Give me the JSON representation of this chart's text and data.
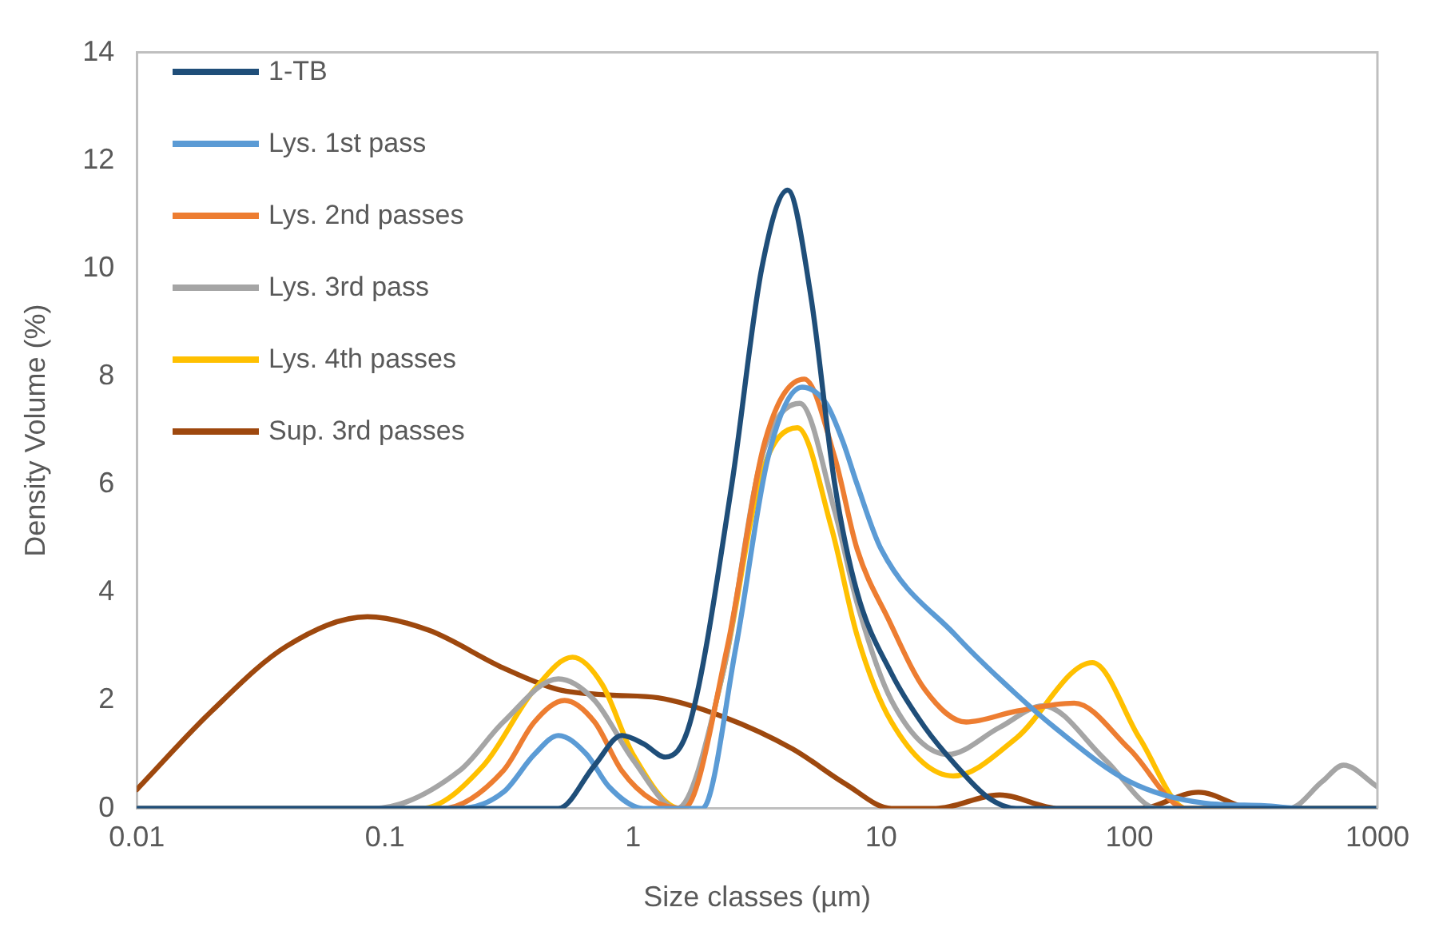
{
  "chart_data": {
    "type": "line",
    "xlabel": "Size classes (µm)",
    "ylabel": "Density Volume (%)",
    "log": "x",
    "xlim": [
      0.01,
      1000
    ],
    "xticks": [
      0.01,
      0.1,
      1,
      10,
      100,
      1000
    ],
    "ylim": [
      0,
      14
    ],
    "yticks": [
      0,
      2,
      4,
      6,
      8,
      10,
      12,
      14
    ],
    "grid": false,
    "legend": "top left",
    "marker": "none",
    "line_style": "solid",
    "series": [
      {
        "name": "1-TB",
        "color": "#1f4e79",
        "x": [
          0.01,
          0.5,
          0.7,
          0.9,
          1.1,
          1.35,
          1.7,
          2.5,
          3.3,
          4.2,
          5.2,
          6.5,
          8,
          11,
          15,
          20,
          27,
          35,
          1000
        ],
        "values": [
          0,
          0,
          0.8,
          1.35,
          1.2,
          0.95,
          1.6,
          6,
          10,
          11.45,
          9.5,
          6,
          4,
          2.5,
          1.5,
          0.8,
          0.2,
          0,
          0
        ]
      },
      {
        "name": "Lys. 1st pass",
        "color": "#5b9bd5",
        "x": [
          0.01,
          0.2,
          0.3,
          0.4,
          0.5,
          0.65,
          0.8,
          1.1,
          1.9,
          2.6,
          3.5,
          4.8,
          6,
          7,
          8,
          10,
          20,
          30,
          50,
          100,
          200,
          350,
          500,
          1000
        ],
        "values": [
          0,
          0,
          0.3,
          1,
          1.35,
          1,
          0.4,
          0,
          0,
          3,
          6.5,
          7.8,
          7.5,
          6.8,
          6,
          4.8,
          3.2,
          2.4,
          1.5,
          0.5,
          0.1,
          0.05,
          0,
          0
        ]
      },
      {
        "name": "Lys. 2nd passes",
        "color": "#ed7d31",
        "x": [
          0.01,
          0.17,
          0.3,
          0.4,
          0.53,
          0.7,
          0.9,
          1.2,
          1.6,
          2.4,
          3.4,
          4.9,
          6.5,
          8,
          10.7,
          15,
          22,
          35,
          60,
          100,
          170,
          1000
        ],
        "values": [
          0,
          0,
          0.7,
          1.6,
          2,
          1.6,
          0.7,
          0.15,
          0,
          3,
          6.8,
          7.95,
          6.5,
          4.8,
          3.5,
          2.2,
          1.6,
          1.8,
          1.95,
          1.1,
          0,
          0
        ]
      },
      {
        "name": "Lys. 3rd pass",
        "color": "#a5a5a5",
        "x": [
          0.01,
          0.09,
          0.2,
          0.3,
          0.5,
          0.7,
          1,
          1.5,
          2.3,
          3.3,
          4.7,
          6.5,
          8,
          11,
          18.6,
          30,
          45,
          80,
          130,
          440,
          600,
          730,
          1000
        ],
        "values": [
          0,
          0,
          0.7,
          1.6,
          2.4,
          2,
          0.9,
          0,
          2.5,
          6.5,
          7.5,
          5.5,
          3.8,
          2,
          1,
          1.5,
          1.9,
          0.9,
          0,
          0,
          0.5,
          0.8,
          0.4
        ]
      },
      {
        "name": "Lys. 4th passes",
        "color": "#ffc000",
        "x": [
          0.01,
          0.14,
          0.25,
          0.4,
          0.57,
          0.75,
          1,
          1.55,
          2.3,
          3.3,
          4.6,
          6.3,
          8,
          11,
          19.5,
          35,
          71,
          110,
          170,
          1000
        ],
        "values": [
          0,
          0,
          0.8,
          2.2,
          2.8,
          2.3,
          1,
          0,
          2.5,
          6.2,
          7.05,
          5.2,
          3.2,
          1.6,
          0.6,
          1.3,
          2.7,
          1.3,
          0,
          0
        ]
      },
      {
        "name": "Sup. 3rd passes",
        "color": "#9e480e",
        "x": [
          0.01,
          0.02,
          0.04,
          0.085,
          0.15,
          0.3,
          0.5,
          0.8,
          1.26,
          2.3,
          4.4,
          7.2,
          11,
          16.6,
          30,
          52,
          110,
          190,
          315,
          1000
        ],
        "values": [
          0.35,
          1.8,
          3,
          3.55,
          3.3,
          2.6,
          2.2,
          2.1,
          2.05,
          1.7,
          1.1,
          0.45,
          0,
          0,
          0.25,
          0,
          0,
          0.3,
          0,
          0
        ]
      }
    ]
  }
}
